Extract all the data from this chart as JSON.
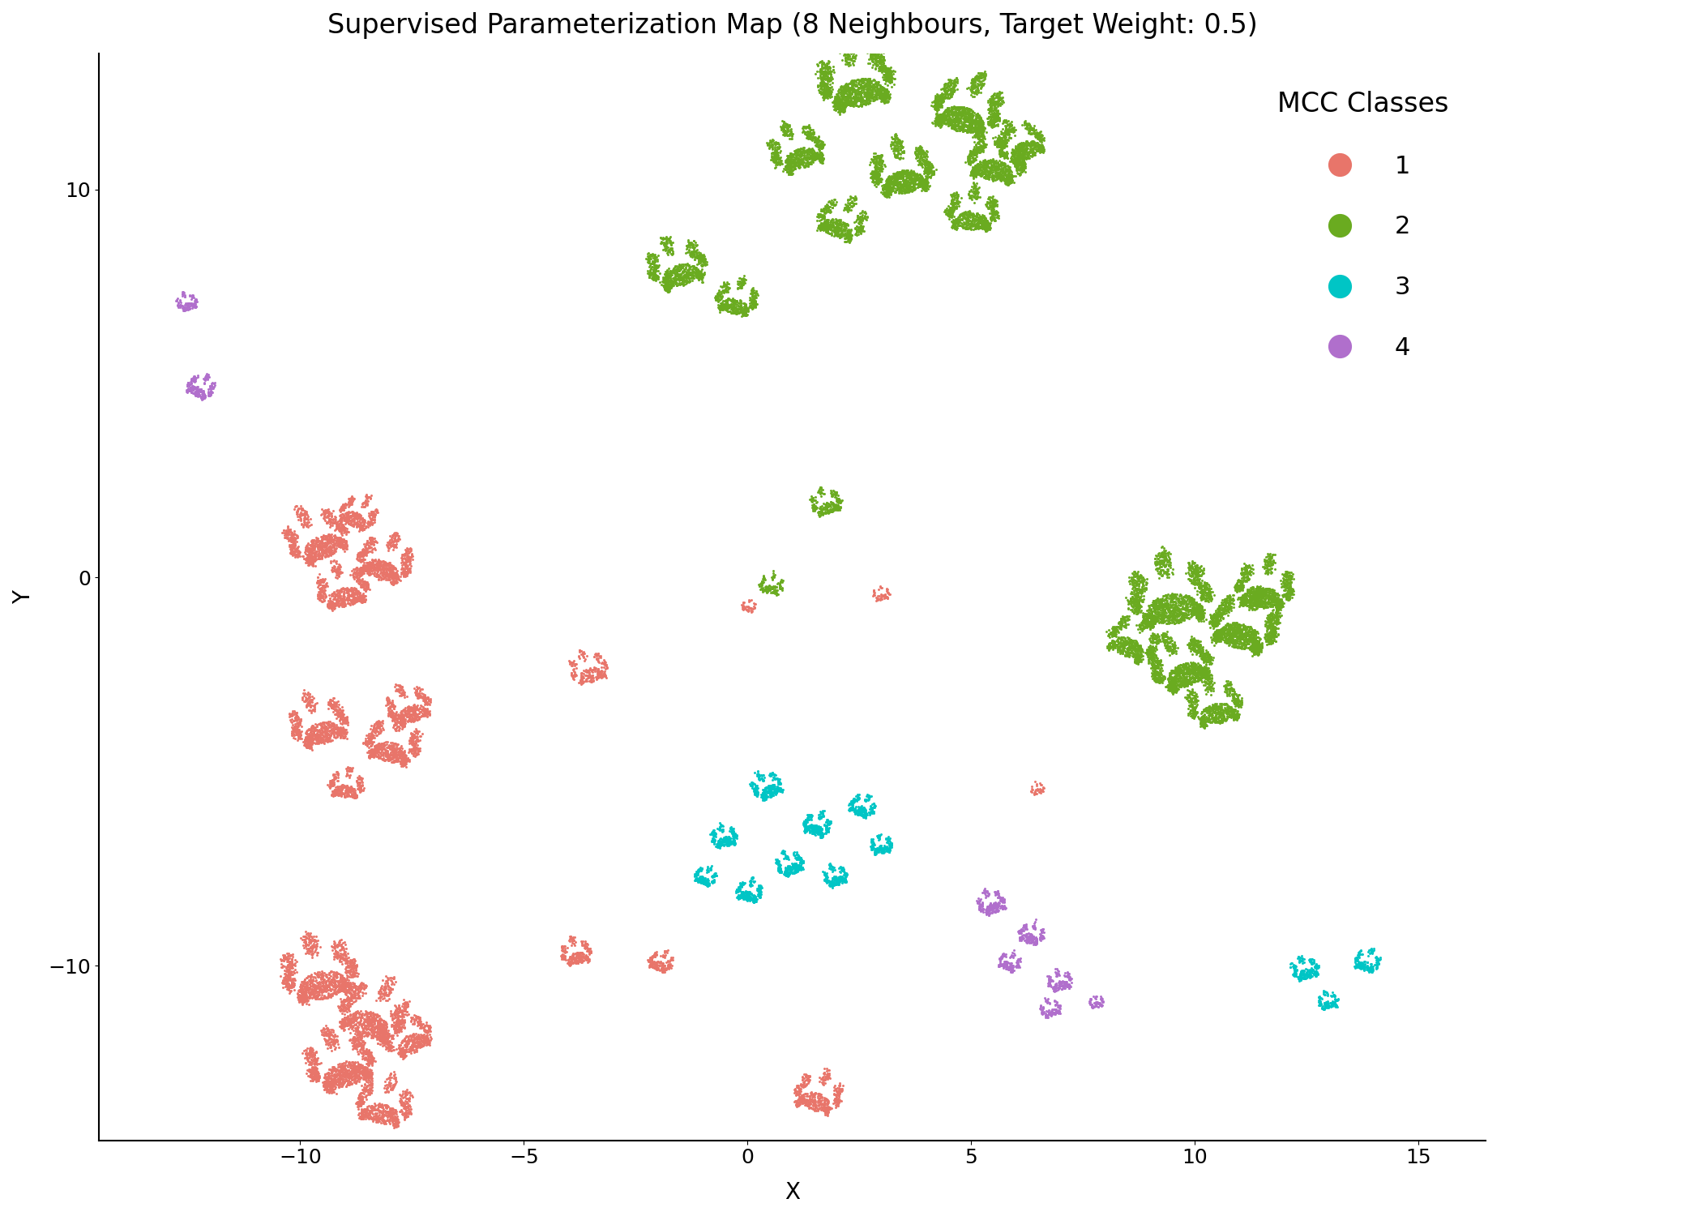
{
  "title": "Supervised Parameterization Map (8 Neighbours, Target Weight: 0.5)",
  "xlabel": "X",
  "ylabel": "Y",
  "xlim": [
    -14.5,
    16.5
  ],
  "ylim": [
    -14.5,
    13.5
  ],
  "xticks": [
    -10,
    -5,
    0,
    5,
    10,
    15
  ],
  "yticks": [
    -10,
    0,
    10
  ],
  "colors": {
    "1": "#E8756A",
    "2": "#6AAB20",
    "3": "#00C5C5",
    "4": "#B06FCC"
  },
  "legend_title": "MCC Classes",
  "background": "#FFFFFF",
  "point_size": 4.5,
  "title_fontsize": 24,
  "axis_fontsize": 20,
  "tick_fontsize": 18,
  "legend_fontsize": 22,
  "legend_title_fontsize": 24,
  "legend_marker_size": 22
}
